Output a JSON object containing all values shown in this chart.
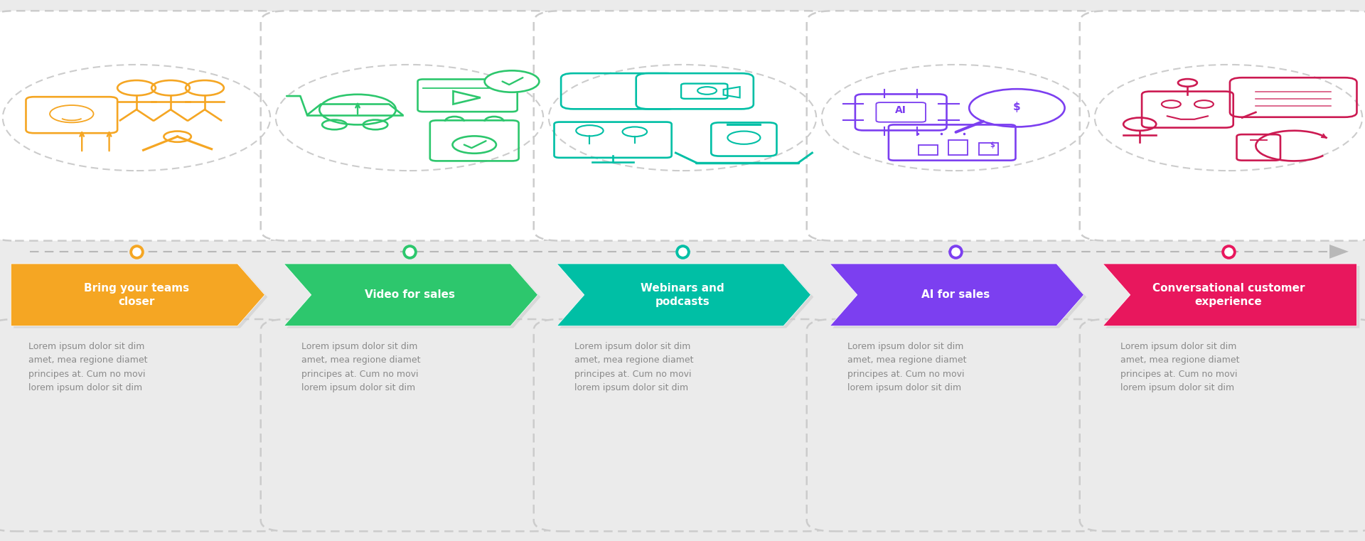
{
  "bg_color": "#ebebeb",
  "steps": [
    {
      "title": "Bring your teams\ncloser",
      "color": "#f5a623",
      "dot_color": "#f5a623",
      "icon_color": "#f5a623"
    },
    {
      "title": "Video for sales",
      "color": "#2dc76d",
      "dot_color": "#2dc76d",
      "icon_color": "#2dc76d"
    },
    {
      "title": "Webinars and\npodcasts",
      "color": "#00bfa5",
      "dot_color": "#00bfa5",
      "icon_color": "#00bfa5"
    },
    {
      "title": "AI for sales",
      "color": "#7c3ff0",
      "dot_color": "#7c3ff0",
      "icon_color": "#7c3ff0"
    },
    {
      "title": "Conversational customer\nexperience",
      "color": "#e8175d",
      "dot_color": "#e8175d",
      "icon_color": "#cc1a52"
    }
  ],
  "lorem": "Lorem ipsum dolor sit dim\namet, mea regione diamet\nprincipes at. Cum no movi\nlorem ipsum dolor sit dim"
}
